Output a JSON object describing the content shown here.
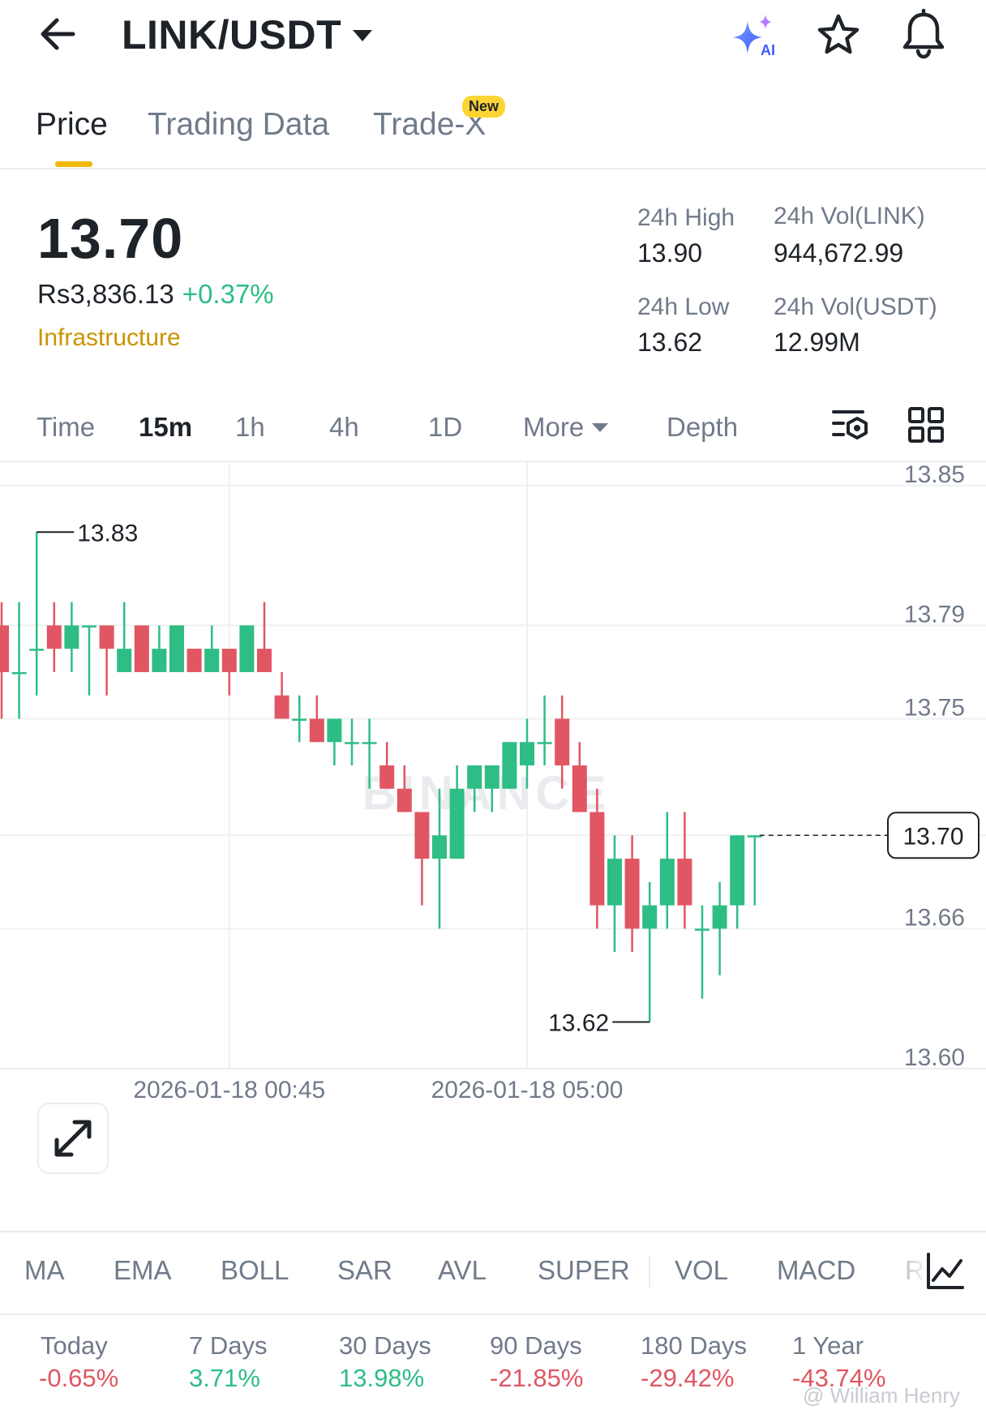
{
  "header": {
    "pair": "LINK/USDT",
    "icons": [
      "back-arrow-icon",
      "ai-sparkle-icon",
      "star-icon",
      "bell-icon"
    ]
  },
  "tabs": [
    {
      "label": "Price",
      "active": true
    },
    {
      "label": "Trading Data",
      "active": false
    },
    {
      "label": "Trade-X",
      "active": false,
      "badge": "New"
    }
  ],
  "ticker": {
    "last_price": "13.70",
    "fiat_price": "Rs3,836.13",
    "change_pct": "+0.37%",
    "category": "Infrastructure",
    "high_label": "24h High",
    "high_value": "13.90",
    "low_label": "24h Low",
    "low_value": "13.62",
    "vol_base_label": "24h Vol(LINK)",
    "vol_base_value": "944,672.99",
    "vol_quote_label": "24h Vol(USDT)",
    "vol_quote_value": "12.99M"
  },
  "timeframes": {
    "items": [
      "Time",
      "15m",
      "1h",
      "4h",
      "1D",
      "More",
      "Depth"
    ],
    "active": "15m"
  },
  "chart_data": {
    "type": "candlestick",
    "interval": "15m",
    "y_ticks": [
      "13.85",
      "13.79",
      "13.75",
      "13.70",
      "13.66",
      "13.60"
    ],
    "ylim": [
      13.6,
      13.86
    ],
    "x_labels": [
      "2026-01-18 00:45",
      "2026-01-18 05:00"
    ],
    "x_label_candle_index": [
      13,
      30
    ],
    "current_price": "13.70",
    "high_marker": "13.83",
    "low_marker": "13.62",
    "watermark": "BINANCE",
    "colors": {
      "up": "#2ebd85",
      "down": "#e05662"
    },
    "candles": [
      {
        "o": 13.79,
        "h": 13.8,
        "l": 13.75,
        "c": 13.77
      },
      {
        "o": 13.77,
        "h": 13.8,
        "l": 13.75,
        "c": 13.77
      },
      {
        "o": 13.78,
        "h": 13.83,
        "l": 13.76,
        "c": 13.78
      },
      {
        "o": 13.79,
        "h": 13.8,
        "l": 13.77,
        "c": 13.78
      },
      {
        "o": 13.78,
        "h": 13.8,
        "l": 13.77,
        "c": 13.79
      },
      {
        "o": 13.79,
        "h": 13.79,
        "l": 13.76,
        "c": 13.79
      },
      {
        "o": 13.79,
        "h": 13.79,
        "l": 13.76,
        "c": 13.78
      },
      {
        "o": 13.77,
        "h": 13.8,
        "l": 13.77,
        "c": 13.78
      },
      {
        "o": 13.79,
        "h": 13.79,
        "l": 13.77,
        "c": 13.77
      },
      {
        "o": 13.77,
        "h": 13.79,
        "l": 13.77,
        "c": 13.78
      },
      {
        "o": 13.77,
        "h": 13.79,
        "l": 13.77,
        "c": 13.79
      },
      {
        "o": 13.78,
        "h": 13.78,
        "l": 13.77,
        "c": 13.77
      },
      {
        "o": 13.77,
        "h": 13.79,
        "l": 13.77,
        "c": 13.78
      },
      {
        "o": 13.78,
        "h": 13.78,
        "l": 13.76,
        "c": 13.77
      },
      {
        "o": 13.77,
        "h": 13.79,
        "l": 13.77,
        "c": 13.79
      },
      {
        "o": 13.78,
        "h": 13.8,
        "l": 13.77,
        "c": 13.77
      },
      {
        "o": 13.76,
        "h": 13.77,
        "l": 13.75,
        "c": 13.75
      },
      {
        "o": 13.75,
        "h": 13.76,
        "l": 13.74,
        "c": 13.75
      },
      {
        "o": 13.75,
        "h": 13.76,
        "l": 13.74,
        "c": 13.74
      },
      {
        "o": 13.74,
        "h": 13.75,
        "l": 13.73,
        "c": 13.75
      },
      {
        "o": 13.74,
        "h": 13.75,
        "l": 13.73,
        "c": 13.74
      },
      {
        "o": 13.74,
        "h": 13.75,
        "l": 13.72,
        "c": 13.74
      },
      {
        "o": 13.73,
        "h": 13.74,
        "l": 13.72,
        "c": 13.72
      },
      {
        "o": 13.72,
        "h": 13.73,
        "l": 13.71,
        "c": 13.71
      },
      {
        "o": 13.71,
        "h": 13.71,
        "l": 13.67,
        "c": 13.69
      },
      {
        "o": 13.69,
        "h": 13.72,
        "l": 13.66,
        "c": 13.7
      },
      {
        "o": 13.69,
        "h": 13.73,
        "l": 13.69,
        "c": 13.72
      },
      {
        "o": 13.72,
        "h": 13.73,
        "l": 13.71,
        "c": 13.73
      },
      {
        "o": 13.72,
        "h": 13.73,
        "l": 13.71,
        "c": 13.73
      },
      {
        "o": 13.72,
        "h": 13.74,
        "l": 13.72,
        "c": 13.74
      },
      {
        "o": 13.73,
        "h": 13.75,
        "l": 13.72,
        "c": 13.74
      },
      {
        "o": 13.74,
        "h": 13.76,
        "l": 13.73,
        "c": 13.74
      },
      {
        "o": 13.75,
        "h": 13.76,
        "l": 13.72,
        "c": 13.73
      },
      {
        "o": 13.73,
        "h": 13.74,
        "l": 13.71,
        "c": 13.71
      },
      {
        "o": 13.71,
        "h": 13.72,
        "l": 13.66,
        "c": 13.67
      },
      {
        "o": 13.67,
        "h": 13.7,
        "l": 13.65,
        "c": 13.69
      },
      {
        "o": 13.69,
        "h": 13.7,
        "l": 13.65,
        "c": 13.66
      },
      {
        "o": 13.66,
        "h": 13.68,
        "l": 13.62,
        "c": 13.67
      },
      {
        "o": 13.67,
        "h": 13.71,
        "l": 13.66,
        "c": 13.69
      },
      {
        "o": 13.69,
        "h": 13.71,
        "l": 13.66,
        "c": 13.67
      },
      {
        "o": 13.66,
        "h": 13.67,
        "l": 13.63,
        "c": 13.66
      },
      {
        "o": 13.66,
        "h": 13.68,
        "l": 13.64,
        "c": 13.67
      },
      {
        "o": 13.67,
        "h": 13.7,
        "l": 13.66,
        "c": 13.7
      },
      {
        "o": 13.7,
        "h": 13.7,
        "l": 13.67,
        "c": 13.7
      }
    ]
  },
  "indicators": [
    "MA",
    "EMA",
    "BOLL",
    "SAR",
    "AVL",
    "SUPER",
    "VOL",
    "MACD",
    "R"
  ],
  "performance": [
    {
      "label": "Today",
      "value": "-0.65%",
      "color": "#e05662"
    },
    {
      "label": "7 Days",
      "value": "3.71%",
      "color": "#2ebd85"
    },
    {
      "label": "30 Days",
      "value": "13.98%",
      "color": "#2ebd85"
    },
    {
      "label": "90 Days",
      "value": "-21.85%",
      "color": "#e05662"
    },
    {
      "label": "180 Days",
      "value": "-29.42%",
      "color": "#e05662"
    },
    {
      "label": "1 Year",
      "value": "-43.74%",
      "color": "#e05662"
    }
  ],
  "watermark_user": "@ William Henry"
}
